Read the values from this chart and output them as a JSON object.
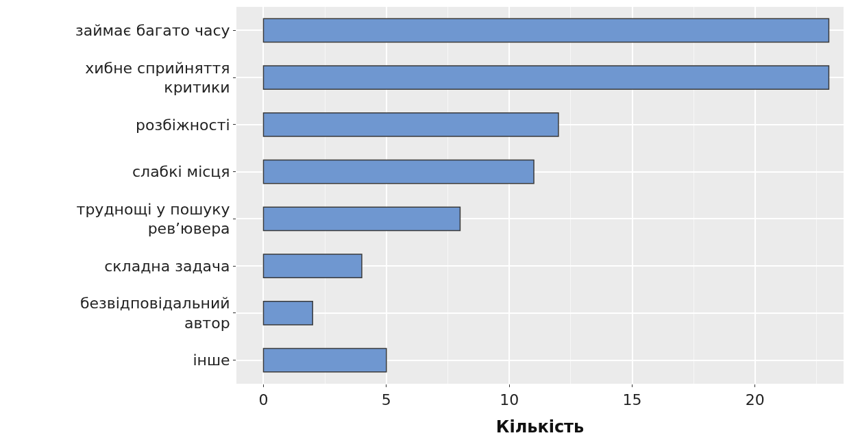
{
  "chart_data": {
    "type": "bar",
    "orientation": "horizontal",
    "xlabel": "Кількість",
    "categories": [
      "займає багато часу",
      "хибне сприйняття\nкритики",
      "розбіжності",
      "слабкі місця",
      "труднощі у пошуку\nрев’ювера",
      "складна задача",
      "безвідповідальний\nавтор",
      "інше"
    ],
    "values": [
      23,
      23,
      12,
      11,
      8,
      4,
      2,
      5
    ],
    "color": "#6f97d0",
    "xlim": [
      -1.1,
      23.6
    ],
    "xticks": [
      0,
      5,
      10,
      15,
      20
    ],
    "grid": true
  }
}
